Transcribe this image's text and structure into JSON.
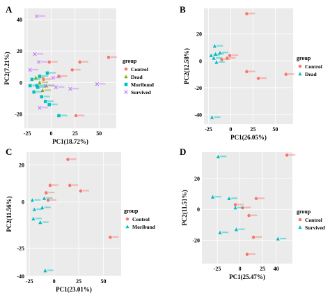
{
  "figure": {
    "panel_letters": [
      "A",
      "B",
      "C",
      "D"
    ]
  },
  "legend": {
    "title": "group"
  },
  "chart_data": [
    {
      "panel": "A",
      "type": "scatter",
      "xlabel": "PC1(18.72%)",
      "ylabel": "PC2(7.21%)",
      "xlim": [
        -28,
        68
      ],
      "ylim": [
        -29,
        47
      ],
      "xticks": [
        -25,
        0,
        25,
        50
      ],
      "yticks": [
        -20,
        0,
        20,
        40
      ],
      "grid": true,
      "legend_placement": "right",
      "series": [
        {
          "name": "Control",
          "color": "#f8766d",
          "marker": "circle",
          "points": [
            [
              60,
              16
            ],
            [
              30,
              13
            ],
            [
              22,
              8
            ],
            [
              -2,
              13
            ],
            [
              8,
              4
            ],
            [
              -8,
              2
            ],
            [
              26,
              -21
            ]
          ]
        },
        {
          "name": "Dead",
          "color": "#7cae00",
          "marker": "triangle",
          "points": [
            [
              -12,
              0
            ],
            [
              -16,
              3
            ],
            [
              -5,
              -2
            ],
            [
              -9,
              -5
            ]
          ]
        },
        {
          "name": "Moribund",
          "color": "#00bfc4",
          "marker": "square",
          "points": [
            [
              -20,
              2
            ],
            [
              -22,
              -2
            ],
            [
              -14,
              -3
            ],
            [
              -18,
              -6
            ],
            [
              -10,
              -9
            ],
            [
              -6,
              -12
            ],
            [
              -2,
              -14
            ],
            [
              -15,
              -2
            ],
            [
              8,
              -21
            ],
            [
              -4,
              6
            ],
            [
              -12,
              4
            ]
          ]
        },
        {
          "name": "Survived",
          "color": "#c77cff",
          "marker": "cross",
          "points": [
            [
              -15,
              42
            ],
            [
              -17,
              18
            ],
            [
              -13,
              13
            ],
            [
              -22,
              8
            ],
            [
              -12,
              -16
            ],
            [
              5,
              -3
            ],
            [
              2,
              3
            ],
            [
              20,
              -4
            ],
            [
              48,
              -1
            ],
            [
              -6,
              -2
            ]
          ]
        }
      ]
    },
    {
      "panel": "B",
      "type": "scatter",
      "xlabel": "PC1(26.05%)",
      "ylabel": "PC2(12.58%)",
      "xlim": [
        -30,
        70
      ],
      "ylim": [
        -47,
        39
      ],
      "xticks": [
        -25,
        0,
        25,
        50
      ],
      "yticks": [
        -40,
        -20,
        0,
        20
      ],
      "grid": true,
      "legend_placement": "right",
      "series": [
        {
          "name": "Control",
          "color": "#f8766d",
          "marker": "circle",
          "points": [
            [
              18,
              35
            ],
            [
              -1,
              4
            ],
            [
              -4,
              2
            ],
            [
              -10,
              1
            ],
            [
              18,
              -8
            ],
            [
              31,
              -13
            ],
            [
              62,
              -10
            ]
          ]
        },
        {
          "name": "Dead",
          "color": "#00bfc4",
          "marker": "triangle",
          "points": [
            [
              -18,
              11
            ],
            [
              -17,
              5
            ],
            [
              -19,
              2
            ],
            [
              -16,
              -1
            ],
            [
              -22,
              4
            ],
            [
              -12,
              6
            ],
            [
              -21,
              -42
            ]
          ]
        }
      ]
    },
    {
      "panel": "C",
      "type": "scatter",
      "xlabel": "PC1(23.01%)",
      "ylabel": "PC2(11.56%)",
      "xlim": [
        -28,
        68
      ],
      "ylim": [
        -40,
        27
      ],
      "xticks": [
        -25,
        0,
        25,
        50
      ],
      "yticks": [
        -40,
        -25,
        0,
        20
      ],
      "grid": true,
      "legend_placement": "right",
      "series": [
        {
          "name": "Control",
          "color": "#f8766d",
          "marker": "circle",
          "points": [
            [
              14,
              23
            ],
            [
              16,
              9
            ],
            [
              27,
              6
            ],
            [
              -4,
              9
            ],
            [
              -8,
              5
            ],
            [
              -6,
              1
            ],
            [
              57,
              -19
            ]
          ]
        },
        {
          "name": "Moribund",
          "color": "#00bfc4",
          "marker": "triangle",
          "points": [
            [
              -22,
              1
            ],
            [
              -20,
              -4
            ],
            [
              -12,
              -3
            ],
            [
              -10,
              2
            ],
            [
              -21,
              -9
            ],
            [
              -14,
              -11
            ],
            [
              -9,
              -37
            ]
          ]
        }
      ]
    },
    {
      "panel": "D",
      "type": "scatter",
      "xlabel": "PC1(25.47%)",
      "ylabel": "PC2(11.51%)",
      "xlim": [
        -42,
        58
      ],
      "ylim": [
        -35,
        37
      ],
      "xticks": [
        -25,
        0,
        25,
        40
      ],
      "yticks": [
        -20,
        0,
        20
      ],
      "grid": true,
      "legend_placement": "right",
      "series": [
        {
          "name": "Control",
          "color": "#f8766d",
          "marker": "circle",
          "points": [
            [
              52,
              35
            ],
            [
              18,
              7
            ],
            [
              3,
              1
            ],
            [
              -5,
              3
            ],
            [
              10,
              -4
            ],
            [
              8,
              -29
            ],
            [
              15,
              -18
            ]
          ]
        },
        {
          "name": "Survived",
          "color": "#00bfc4",
          "marker": "triangle",
          "points": [
            [
              -24,
              34
            ],
            [
              -30,
              8
            ],
            [
              -12,
              7
            ],
            [
              -5,
              1
            ],
            [
              -22,
              -15
            ],
            [
              -4,
              -13
            ],
            [
              42,
              -19
            ]
          ]
        }
      ]
    }
  ]
}
